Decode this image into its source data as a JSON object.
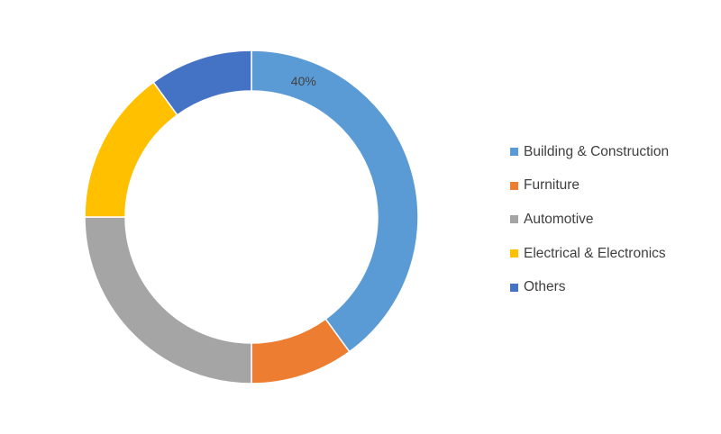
{
  "chart_data": {
    "type": "pie",
    "variant": "donut",
    "categories": [
      "Building & Construction",
      "Furniture",
      "Automotive",
      "Electrical & Electronics",
      "Others"
    ],
    "values": [
      40,
      10,
      25,
      15,
      10
    ],
    "colors": [
      "#5B9BD5",
      "#ED7D31",
      "#A5A5A5",
      "#FFC000",
      "#4472C4"
    ],
    "data_labels": [
      "40%",
      "",
      "",
      "",
      ""
    ],
    "legend_position": "right"
  }
}
